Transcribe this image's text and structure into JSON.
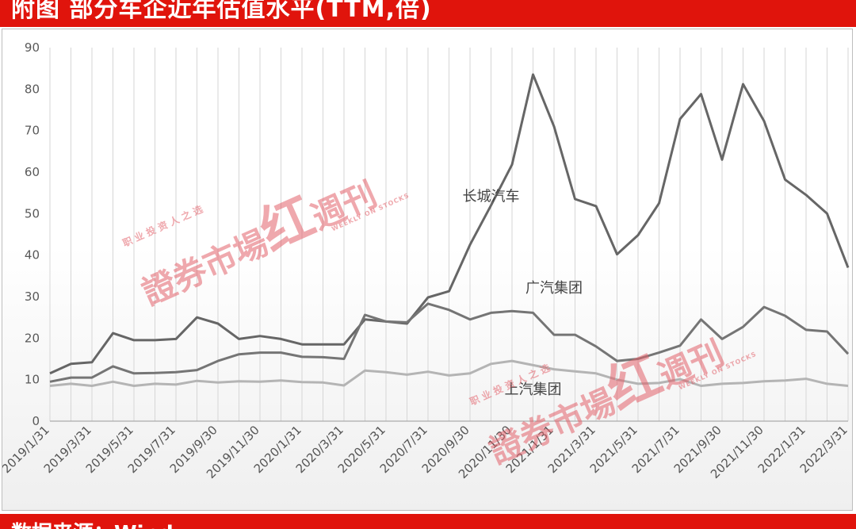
{
  "banner_top": {
    "text": "附图   部分车企近年估值水平(TTM,倍)"
  },
  "banner_bottom": {
    "text": "数据来源：Wind"
  },
  "watermarks": [
    {
      "small": "职 业 投 资 人 之 选",
      "big": "證券市場",
      "mark": "红",
      "title": "週刊",
      "en": "WEEKLY ON STOCKS"
    },
    {
      "small": "职 业 投 资 人 之 选",
      "big": "證券市場",
      "mark": "红",
      "title": "週刊",
      "en": "WEEKLY ON STOCKS"
    }
  ],
  "colors": {
    "banner": "#e0140c",
    "great_wall": "#666666",
    "gac": "#757575",
    "saic": "#b4b4b4",
    "watermark": "#e2606a"
  },
  "chart_data": {
    "type": "line",
    "title": "",
    "xlabel": "",
    "ylabel": "",
    "ylim": [
      0,
      90
    ],
    "yticks": [
      "0",
      "10",
      "20",
      "30",
      "40",
      "50",
      "60",
      "70",
      "80",
      "90"
    ],
    "x": [
      "2019/1/31",
      "2019/2/28",
      "2019/3/31",
      "2019/4/30",
      "2019/5/31",
      "2019/6/30",
      "2019/7/31",
      "2019/8/31",
      "2019/9/30",
      "2019/10/31",
      "2019/11/30",
      "2019/12/31",
      "2020/1/31",
      "2020/2/29",
      "2020/3/31",
      "2020/4/30",
      "2020/5/31",
      "2020/6/30",
      "2020/7/31",
      "2020/8/31",
      "2020/9/30",
      "2020/10/31",
      "2020/11/30",
      "2020/12/31",
      "2021/1/31",
      "2021/2/28",
      "2021/3/31",
      "2021/4/30",
      "2021/5/31",
      "2021/6/30",
      "2021/7/31",
      "2021/8/31",
      "2021/9/30",
      "2021/10/31",
      "2021/11/30",
      "2021/12/31",
      "2022/1/31",
      "2022/2/28",
      "2022/3/31"
    ],
    "xtick_labels": [
      "2019/1/31",
      "2019/3/31",
      "2019/5/31",
      "2019/7/31",
      "2019/9/30",
      "2019/11/30",
      "2020/1/31",
      "2020/3/31",
      "2020/5/31",
      "2020/7/31",
      "2020/9/30",
      "2020/11/30",
      "2021/1/31",
      "2021/3/31",
      "2021/5/31",
      "2021/7/31",
      "2021/9/30",
      "2021/11/30",
      "2022/1/31",
      "2022/3/31"
    ],
    "series": [
      {
        "name": "长城汽车",
        "label_at": "2020/10/31",
        "label_y": 53,
        "values": [
          11.5,
          13.8,
          14.2,
          21.2,
          19.5,
          19.5,
          19.8,
          25,
          23.5,
          19.8,
          20.5,
          19.8,
          18.5,
          18.5,
          18.5,
          24.5,
          24,
          23.5,
          29.8,
          31.3,
          42.5,
          52,
          61.8,
          83.5,
          71,
          53.5,
          51.8,
          40.2,
          44.8,
          52.5,
          72.8,
          78.8,
          63,
          81.2,
          72.3,
          58.2,
          54.5,
          50,
          37
        ]
      },
      {
        "name": "广汽集团",
        "label_at": "2021/1/31",
        "label_y": 31,
        "values": [
          9.5,
          10.5,
          10.5,
          13.2,
          11.5,
          11.6,
          11.8,
          12.3,
          14.5,
          16.1,
          16.5,
          16.5,
          15.5,
          15.4,
          15,
          25.6,
          24,
          23.8,
          28.3,
          26.8,
          24.5,
          26.1,
          26.5,
          26.1,
          20.8,
          20.8,
          18,
          14.5,
          15,
          16.5,
          18.2,
          24.5,
          19.8,
          22.7,
          27.5,
          25.4,
          22,
          21.6,
          16.2
        ]
      },
      {
        "name": "上汽集团",
        "label_at": "2020/12/31",
        "label_y": 6.5,
        "values": [
          8.5,
          9,
          8.5,
          9.5,
          8.5,
          9,
          8.8,
          9.7,
          9.3,
          9.6,
          9.5,
          9.8,
          9.4,
          9.3,
          8.6,
          12.2,
          11.8,
          11.2,
          11.9,
          11,
          11.5,
          13.8,
          14.5,
          13.5,
          12.5,
          12,
          11.5,
          10,
          9,
          9.2,
          10.1,
          8.5,
          9,
          9.2,
          9.6,
          9.8,
          10.2,
          9,
          8.5
        ]
      }
    ],
    "grid": true,
    "legend": "none"
  }
}
